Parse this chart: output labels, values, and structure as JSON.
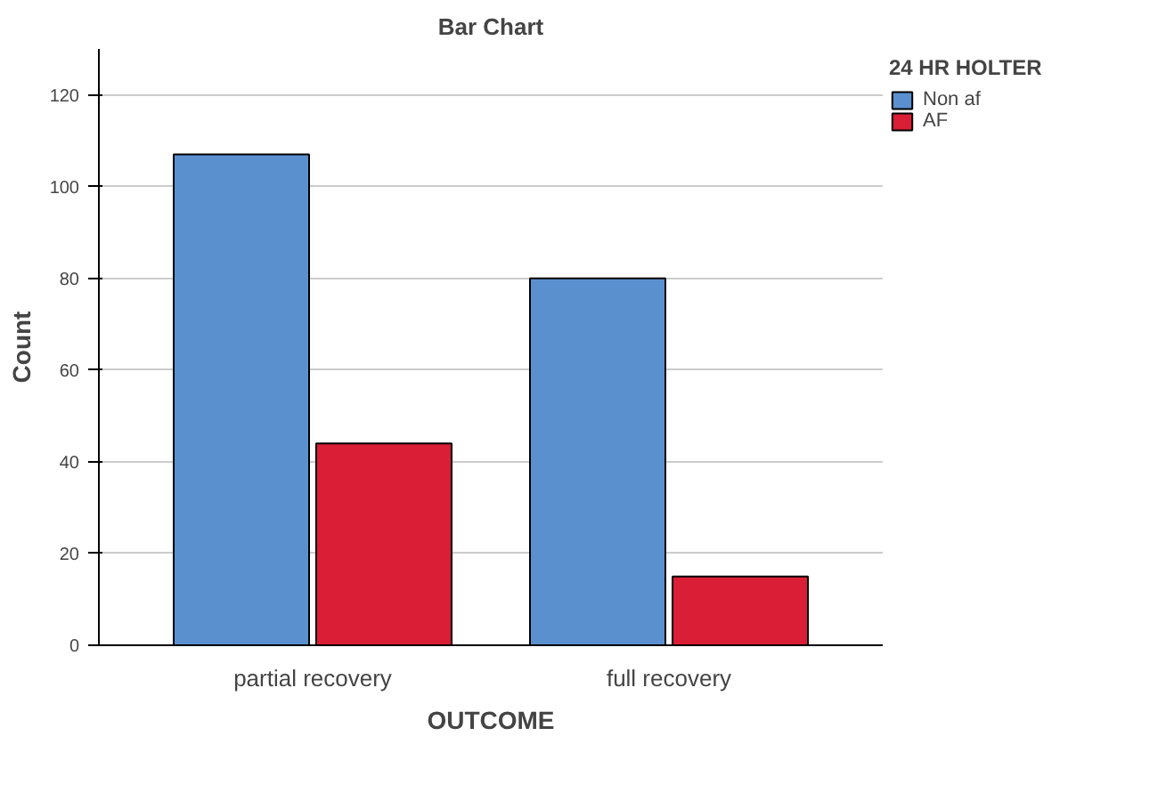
{
  "chart_data": {
    "type": "bar",
    "title": "Bar Chart",
    "xlabel": "OUTCOME",
    "ylabel": "Count",
    "legend_title": "24 HR HOLTER",
    "categories": [
      "partial recovery",
      "full recovery"
    ],
    "series": [
      {
        "name": "Non af",
        "color": "#5b90cf",
        "values": [
          107,
          80
        ]
      },
      {
        "name": "AF",
        "color": "#d91e35",
        "values": [
          44,
          15
        ]
      }
    ],
    "ylim": [
      0,
      130
    ],
    "yticks": [
      0,
      20,
      40,
      60,
      80,
      100,
      120
    ],
    "grid": "y",
    "legend": "top right"
  }
}
